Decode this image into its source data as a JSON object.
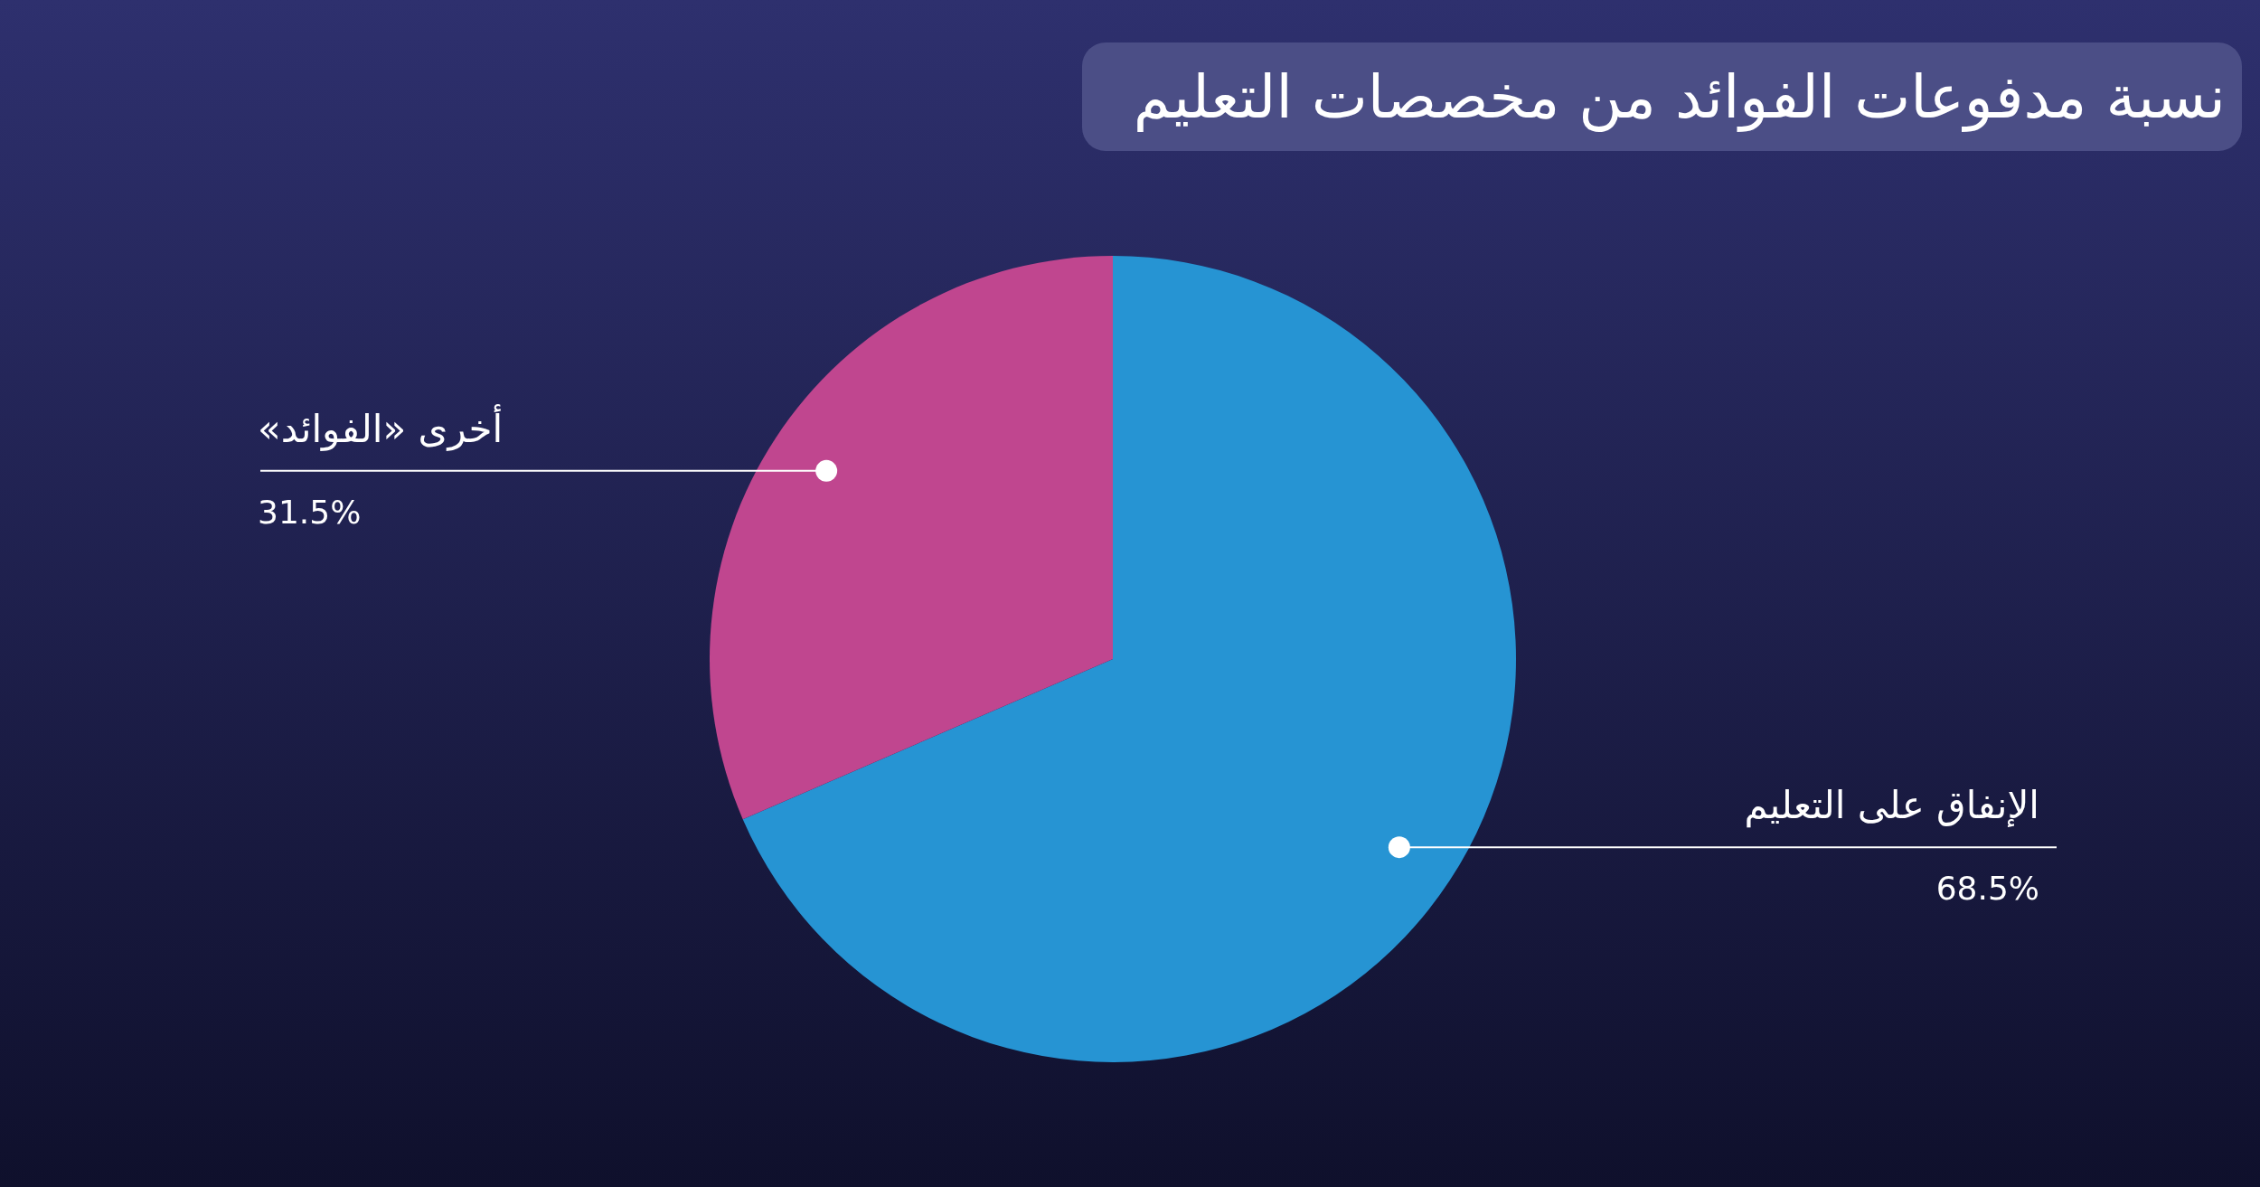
{
  "chart_data": {
    "type": "pie",
    "title": "نسبة مدفوعات الفوائد من مخصصات التعليم",
    "categories": [
      "الإنفاق على التعليم",
      "أخرى «الفوائد»"
    ],
    "values": [
      68.5,
      31.5
    ],
    "colors": [
      "#2694d3",
      "#c0468f"
    ],
    "value_labels": [
      "68.5%",
      "31.5%"
    ]
  }
}
